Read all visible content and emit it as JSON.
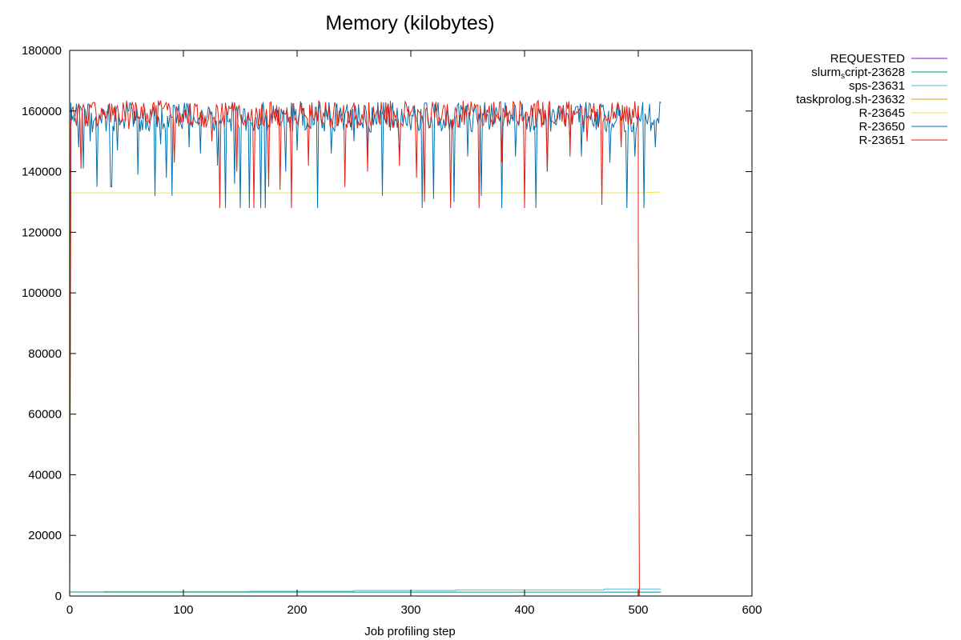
{
  "chart_data": {
    "type": "line",
    "title": "Memory (kilobytes)",
    "xlabel": "Job profiling step",
    "ylabel": "",
    "xlim": [
      0,
      600
    ],
    "ylim": [
      0,
      180000
    ],
    "x_ticks": [
      0,
      100,
      200,
      300,
      400,
      500,
      600
    ],
    "y_ticks": [
      0,
      20000,
      40000,
      60000,
      80000,
      100000,
      120000,
      140000,
      160000,
      180000
    ],
    "grid": false,
    "legend_position": "outside-top-right",
    "series": [
      {
        "name": "REQUESTED",
        "color": "#9400d3",
        "points": []
      },
      {
        "name": "slurm_script-23628",
        "name_main": "slurm",
        "name_sub": "s",
        "name_rest": "cript-23628",
        "color": "#009e73",
        "points": [
          [
            0,
            1300
          ],
          [
            100,
            1300
          ],
          [
            200,
            1300
          ],
          [
            300,
            1300
          ],
          [
            400,
            1300
          ],
          [
            500,
            1300
          ],
          [
            520,
            1300
          ]
        ]
      },
      {
        "name": "sps-23631",
        "color": "#56b4e9",
        "points": [
          [
            0,
            1400
          ],
          [
            30,
            1400
          ],
          [
            30,
            1500
          ],
          [
            158,
            1500
          ],
          [
            158,
            1600
          ],
          [
            250,
            1600
          ],
          [
            250,
            1800
          ],
          [
            340,
            1800
          ],
          [
            340,
            2000
          ],
          [
            470,
            2000
          ],
          [
            470,
            2300
          ],
          [
            520,
            2300
          ]
        ]
      },
      {
        "name": "taskprolog.sh-23632",
        "color": "#e69f00",
        "points": []
      },
      {
        "name": "R-23645",
        "color": "#f0e442",
        "points": [
          [
            0,
            0
          ],
          [
            1,
            133000
          ],
          [
            100,
            133000
          ],
          [
            200,
            133000
          ],
          [
            300,
            133000
          ],
          [
            400,
            133000
          ],
          [
            500,
            133000
          ],
          [
            520,
            133300
          ]
        ]
      },
      {
        "name": "R-23650",
        "color": "#0072b2",
        "base": 158000,
        "jitter": 5000,
        "x_end": 520,
        "start_from_zero": true,
        "dips": [
          [
            8,
            148000
          ],
          [
            12,
            141000
          ],
          [
            18,
            150000
          ],
          [
            24,
            135000
          ],
          [
            36,
            135000
          ],
          [
            37,
            135000
          ],
          [
            42,
            147000
          ],
          [
            60,
            139000
          ],
          [
            75,
            132000
          ],
          [
            80,
            149000
          ],
          [
            85,
            138000
          ],
          [
            90,
            132000
          ],
          [
            105,
            148000
          ],
          [
            115,
            146000
          ],
          [
            130,
            142000
          ],
          [
            137,
            128000
          ],
          [
            145,
            136000
          ],
          [
            150,
            128000
          ],
          [
            158,
            128000
          ],
          [
            168,
            128000
          ],
          [
            172,
            128000
          ],
          [
            190,
            140000
          ],
          [
            200,
            147000
          ],
          [
            218,
            128000
          ],
          [
            230,
            146000
          ],
          [
            250,
            150000
          ],
          [
            262,
            145000
          ],
          [
            275,
            132000
          ],
          [
            290,
            145000
          ],
          [
            310,
            128000
          ],
          [
            320,
            131000
          ],
          [
            338,
            130000
          ],
          [
            350,
            145000
          ],
          [
            362,
            132000
          ],
          [
            380,
            128000
          ],
          [
            392,
            145000
          ],
          [
            410,
            128000
          ],
          [
            420,
            140000
          ],
          [
            440,
            150000
          ],
          [
            450,
            145000
          ],
          [
            475,
            143000
          ],
          [
            490,
            128000
          ],
          [
            497,
            145000
          ],
          [
            505,
            128000
          ],
          [
            515,
            148000
          ]
        ]
      },
      {
        "name": "R-23651",
        "color": "#e51e10",
        "base": 159000,
        "jitter": 4500,
        "x_end": 500,
        "start_from_zero": true,
        "end_drop": [
          [
            500,
            120000
          ],
          [
            501,
            0
          ]
        ],
        "dips": [
          [
            10,
            141000
          ],
          [
            52,
            154000
          ],
          [
            92,
            143000
          ],
          [
            125,
            150000
          ],
          [
            132,
            128000
          ],
          [
            147,
            140000
          ],
          [
            162,
            128000
          ],
          [
            175,
            135000
          ],
          [
            185,
            134000
          ],
          [
            195,
            128000
          ],
          [
            210,
            142000
          ],
          [
            242,
            135000
          ],
          [
            262,
            140000
          ],
          [
            290,
            142000
          ],
          [
            305,
            138000
          ],
          [
            312,
            130000
          ],
          [
            335,
            128000
          ],
          [
            360,
            128000
          ],
          [
            380,
            143000
          ],
          [
            400,
            128000
          ],
          [
            420,
            140000
          ],
          [
            440,
            145000
          ],
          [
            455,
            150000
          ],
          [
            468,
            129000
          ],
          [
            485,
            148000
          ]
        ]
      }
    ]
  }
}
